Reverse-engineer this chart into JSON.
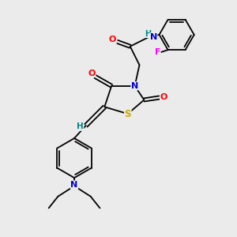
{
  "bg_color": "#ebebeb",
  "atom_colors": {
    "C": "#000000",
    "N": "#0000cc",
    "O": "#ff0000",
    "S": "#ccaa00",
    "F": "#ff00ff",
    "H": "#008888"
  },
  "bond_color": "#000000",
  "lw": 1.3
}
